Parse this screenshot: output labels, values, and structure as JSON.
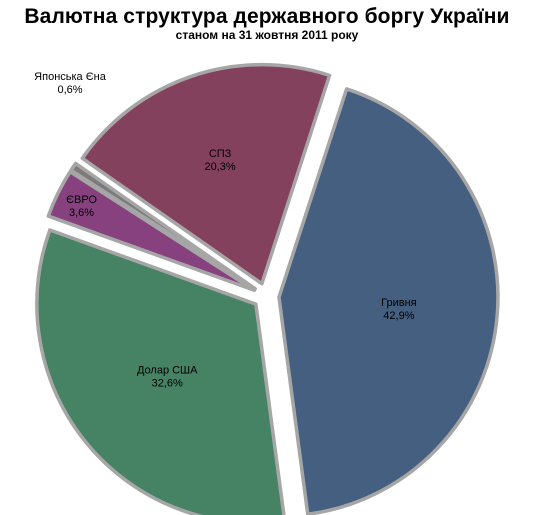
{
  "chart_data": {
    "type": "pie",
    "title": "Валютна структура державного боргу України",
    "subtitle": "станом на 31 жовтня 2011 року",
    "slices": [
      {
        "label": "Гривня",
        "value": 42.9,
        "value_label": "42,9%",
        "color": "#455f80"
      },
      {
        "label": "Долар США",
        "value": 32.6,
        "value_label": "32,6%",
        "color": "#468264"
      },
      {
        "label": "ЄВРО",
        "value": 3.6,
        "value_label": "3,6%",
        "color": "#86417e"
      },
      {
        "label": "Японська Єна",
        "value": 0.6,
        "value_label": "0,6%",
        "color": "#7b7b7b"
      },
      {
        "label": "СПЗ",
        "value": 20.3,
        "value_label": "20,3%",
        "color": "#84415e"
      }
    ]
  }
}
